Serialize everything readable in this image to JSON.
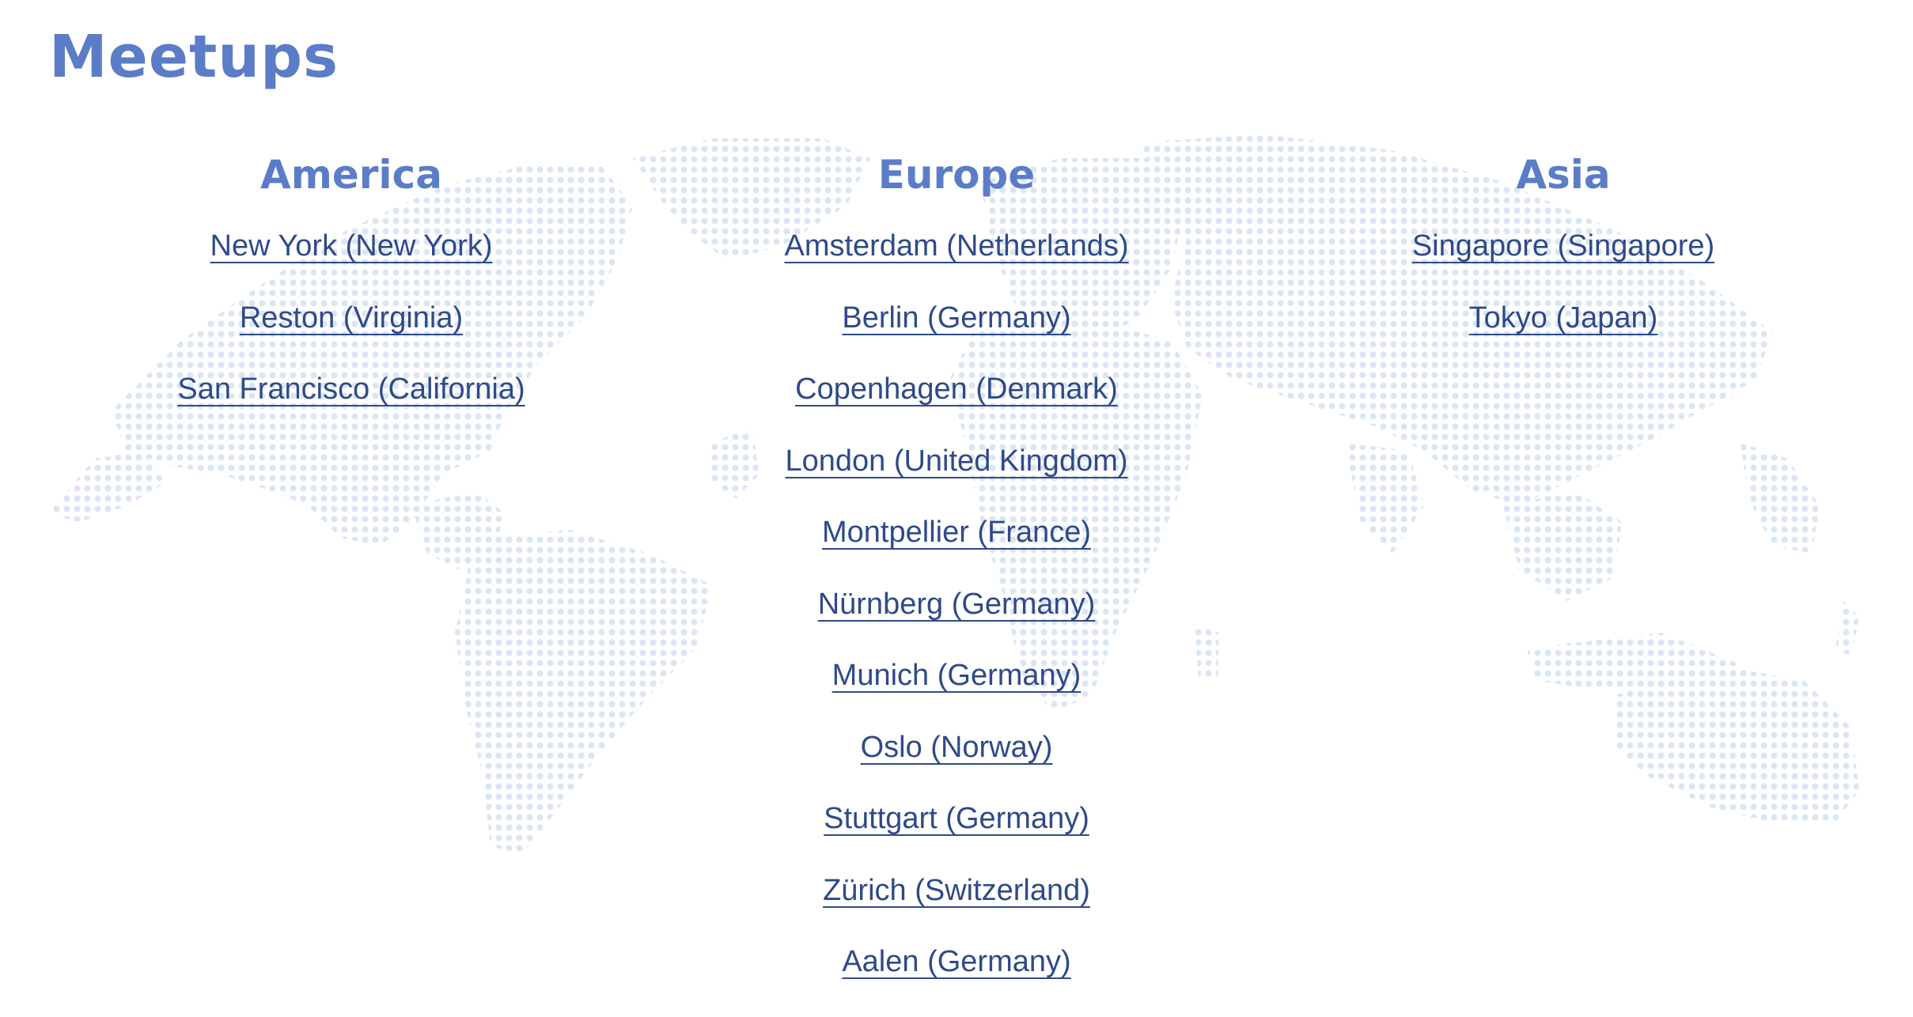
{
  "page": {
    "title": "Meetups"
  },
  "colors": {
    "heading": "#5b7cc7",
    "link": "#2f4a8a",
    "map_dots": "#dbe6f3"
  },
  "regions": {
    "america": {
      "heading": "America",
      "meetups": [
        "New York (New York)",
        "Reston (Virginia)",
        "San Francisco (California)"
      ]
    },
    "europe": {
      "heading": "Europe",
      "meetups": [
        "Amsterdam (Netherlands)",
        "Berlin (Germany)",
        "Copenhagen (Denmark)",
        "London (United Kingdom)",
        "Montpellier (France)",
        "Nürnberg (Germany)",
        "Munich (Germany)",
        "Oslo (Norway)",
        "Stuttgart (Germany)",
        "Zürich (Switzerland)",
        "Aalen (Germany)"
      ]
    },
    "asia": {
      "heading": "Asia",
      "meetups": [
        "Singapore (Singapore)",
        "Tokyo (Japan)"
      ]
    }
  }
}
